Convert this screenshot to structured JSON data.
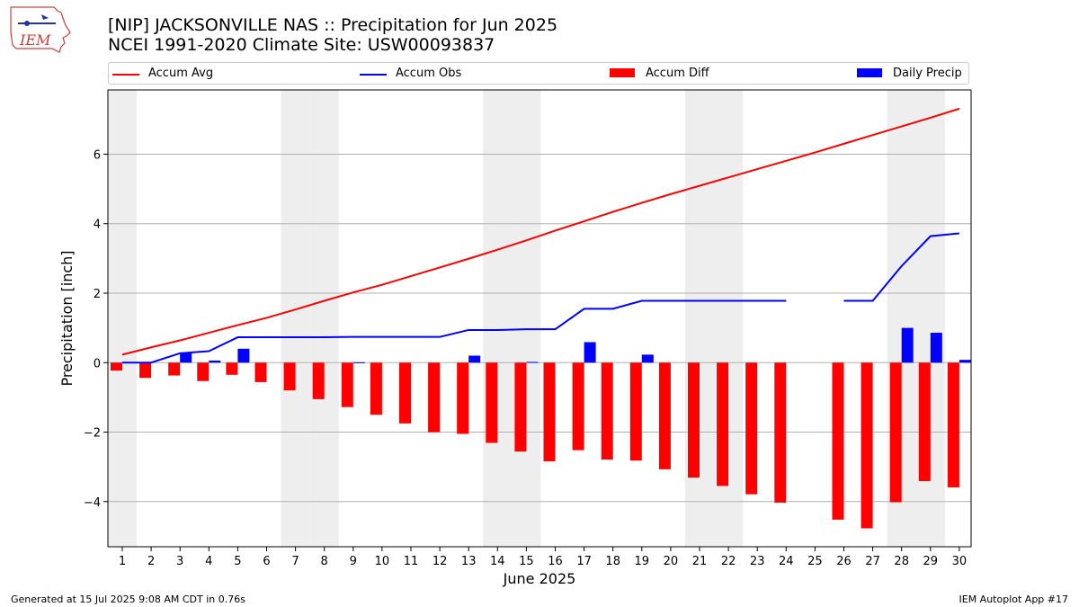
{
  "logo": {
    "text": "IEM"
  },
  "title_line1": "[NIP] JACKSONVILLE NAS :: Precipitation for Jun 2025",
  "title_line2": "NCEI 1991-2020 Climate Site: USW00093837",
  "footer_left": "Generated at 15 Jul 2025 9:08 AM CDT in 0.76s",
  "footer_right": "IEM Autoplot App #17",
  "colors": {
    "avg": "#ff0000",
    "obs": "#0000ff",
    "diff": "#ff0000",
    "daily": "#0000ff",
    "weekend": "#eeeeee",
    "grid": "#b0b0b0"
  },
  "chart_data": {
    "type": "bar",
    "xlabel": "June 2025",
    "ylabel": "Precipitation [inch]",
    "ylim": [
      -5.3,
      7.85
    ],
    "yticks": [
      -4,
      -2,
      0,
      2,
      4,
      6
    ],
    "ytick_labels": [
      "−4",
      "−2",
      "0",
      "2",
      "4",
      "6"
    ],
    "grid": "horizontal",
    "legend_position": "top",
    "x": [
      1,
      2,
      3,
      4,
      5,
      6,
      7,
      8,
      9,
      10,
      11,
      12,
      13,
      14,
      15,
      16,
      17,
      18,
      19,
      20,
      21,
      22,
      23,
      24,
      25,
      26,
      27,
      28,
      29,
      30
    ],
    "weekend_days": [
      1,
      7,
      8,
      14,
      15,
      21,
      22,
      28,
      29
    ],
    "series": [
      {
        "name": "Accum Avg",
        "type": "line",
        "values": [
          0.23,
          0.44,
          0.64,
          0.86,
          1.08,
          1.29,
          1.53,
          1.78,
          2.02,
          2.24,
          2.49,
          2.74,
          2.99,
          3.25,
          3.52,
          3.8,
          4.07,
          4.34,
          4.6,
          4.85,
          5.09,
          5.33,
          5.57,
          5.81,
          6.05,
          6.3,
          6.55,
          6.8,
          7.05,
          7.31
        ]
      },
      {
        "name": "Accum Obs",
        "type": "line",
        "values": [
          0.0,
          0.0,
          0.27,
          0.33,
          0.73,
          0.73,
          0.73,
          0.73,
          0.74,
          0.74,
          0.74,
          0.74,
          0.94,
          0.94,
          0.96,
          0.96,
          1.55,
          1.55,
          1.78,
          1.78,
          1.78,
          1.78,
          1.78,
          1.78,
          null,
          1.78,
          1.78,
          2.78,
          3.64,
          3.72
        ]
      },
      {
        "name": "Accum Diff",
        "type": "bar",
        "values": [
          -0.23,
          -0.44,
          -0.37,
          -0.53,
          -0.35,
          -0.56,
          -0.8,
          -1.05,
          -1.28,
          -1.5,
          -1.75,
          -2.0,
          -2.05,
          -2.31,
          -2.56,
          -2.84,
          -2.52,
          -2.79,
          -2.82,
          -3.07,
          -3.31,
          -3.55,
          -3.79,
          -4.03,
          null,
          -4.52,
          -4.77,
          -4.02,
          -3.41,
          -3.59
        ]
      },
      {
        "name": "Daily Precip",
        "type": "bar",
        "values": [
          0,
          0,
          0.27,
          0.06,
          0.4,
          0,
          0,
          0,
          0.01,
          0,
          0,
          0,
          0.2,
          0,
          0.02,
          0,
          0.59,
          0,
          0.23,
          0,
          0,
          0,
          0,
          0,
          null,
          0,
          0,
          1.0,
          0.86,
          0.08
        ]
      }
    ]
  }
}
